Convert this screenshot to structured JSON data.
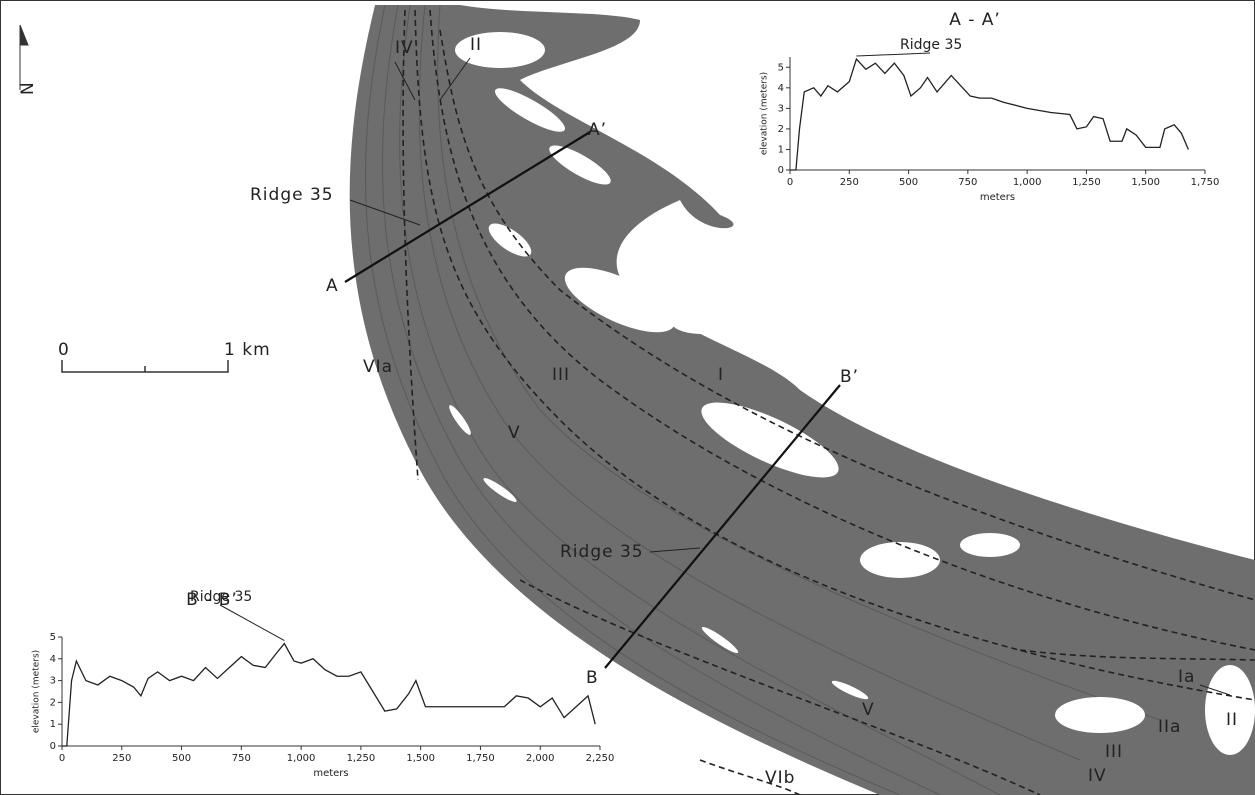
{
  "map": {
    "labels": [
      "N",
      "IV",
      "II",
      "Ridge 35",
      "A’",
      "A",
      "VIa",
      "III",
      "I",
      "V",
      "B’",
      "Ridge 35",
      "B",
      "Ia",
      "IIa",
      "II",
      "III",
      "IV",
      "V",
      "VIb"
    ],
    "scale_bar": {
      "start": "0",
      "end": "1 km"
    }
  },
  "chart_data": [
    {
      "type": "line",
      "title": "A - A’",
      "annotation": "Ridge 35",
      "x_label": "meters",
      "y_label": "elevation (meters)",
      "color": "#222222",
      "x": [
        0,
        25,
        40,
        60,
        100,
        130,
        160,
        200,
        250,
        280,
        320,
        360,
        400,
        440,
        480,
        510,
        550,
        580,
        620,
        680,
        720,
        760,
        800,
        850,
        900,
        1000,
        1100,
        1180,
        1210,
        1250,
        1280,
        1320,
        1350,
        1400,
        1420,
        1460,
        1500,
        1560,
        1580,
        1620,
        1650,
        1680
      ],
      "values": [
        0,
        0,
        2,
        3.8,
        4,
        3.6,
        4.1,
        3.8,
        4.3,
        5.4,
        4.9,
        5.2,
        4.7,
        5.2,
        4.6,
        3.6,
        4,
        4.5,
        3.8,
        4.6,
        4.1,
        3.6,
        3.5,
        3.5,
        3.3,
        3,
        2.8,
        2.7,
        2,
        2.1,
        2.6,
        2.5,
        1.4,
        1.4,
        2,
        1.7,
        1.1,
        1.1,
        2,
        2.2,
        1.8,
        1
      ],
      "xlim": [
        0,
        1750
      ],
      "ylim": [
        0,
        5.5
      ],
      "xticks": [
        0,
        250,
        500,
        750,
        {
          "value": 1000,
          "label": "1,000"
        },
        {
          "value": 1250,
          "label": "1,250"
        },
        {
          "value": 1500,
          "label": "1,500"
        },
        {
          "value": 1750,
          "label": "1,750"
        }
      ],
      "yticks": [
        0,
        1,
        2,
        3,
        4,
        5
      ]
    },
    {
      "type": "line",
      "title": "B - B’",
      "annotation": "Ridge 35",
      "x_label": "meters",
      "y_label": "elevation (meters)",
      "color": "#222222",
      "x": [
        0,
        20,
        40,
        60,
        100,
        150,
        200,
        250,
        300,
        330,
        360,
        400,
        450,
        500,
        550,
        600,
        650,
        700,
        750,
        800,
        850,
        900,
        930,
        970,
        1000,
        1050,
        1100,
        1150,
        1200,
        1250,
        1300,
        1350,
        1400,
        1450,
        1480,
        1520,
        1850,
        1900,
        1950,
        2000,
        2050,
        2100,
        2150,
        2200,
        2230
      ],
      "values": [
        0,
        0,
        3,
        3.9,
        3,
        2.8,
        3.2,
        3,
        2.7,
        2.3,
        3.1,
        3.4,
        3,
        3.2,
        3,
        3.6,
        3.1,
        3.6,
        4.1,
        3.7,
        3.6,
        4.3,
        4.7,
        3.9,
        3.8,
        4,
        3.5,
        3.2,
        3.2,
        3.4,
        2.5,
        1.6,
        1.7,
        2.4,
        3,
        1.8,
        1.8,
        2.3,
        2.2,
        1.8,
        2.2,
        1.3,
        1.8,
        2.3,
        1
      ],
      "xlim": [
        0,
        2250
      ],
      "ylim": [
        0,
        5
      ],
      "xticks": [
        0,
        250,
        500,
        750,
        {
          "value": 1000,
          "label": "1,000"
        },
        {
          "value": 1250,
          "label": "1,250"
        },
        {
          "value": 1500,
          "label": "1,500"
        },
        {
          "value": 1750,
          "label": "1,750"
        },
        {
          "value": 2000,
          "label": "2,000"
        },
        {
          "value": 2250,
          "label": "2,250"
        }
      ],
      "yticks": [
        0,
        1,
        2,
        3,
        4,
        5
      ]
    }
  ]
}
